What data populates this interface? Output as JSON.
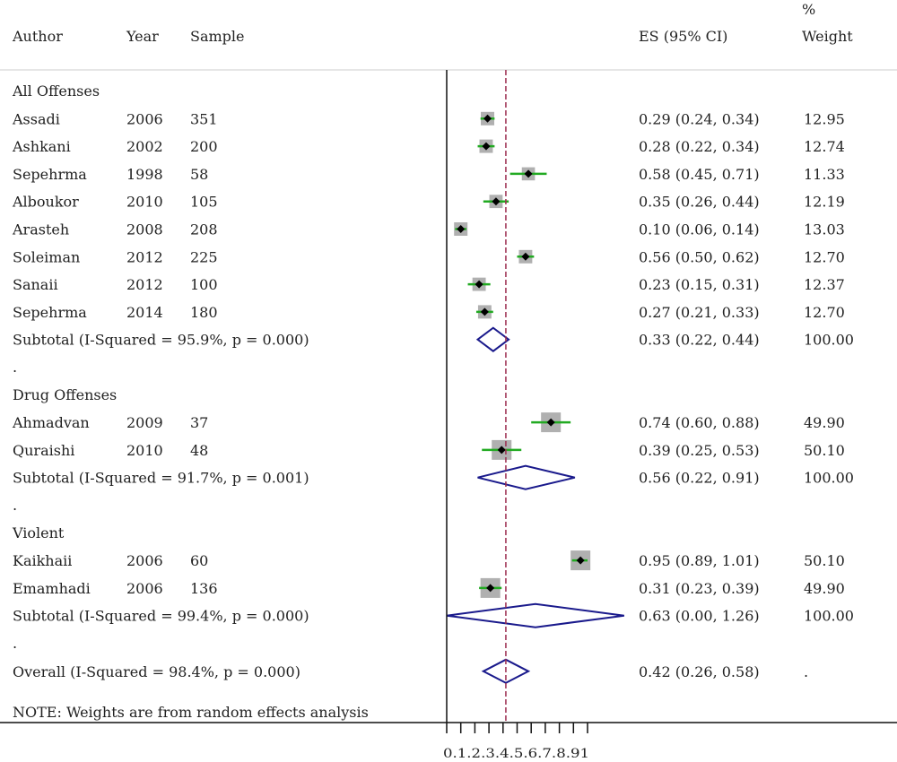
{
  "chart_data": {
    "type": "forest",
    "headers": {
      "author": "Author",
      "year": "Year",
      "sample": "Sample",
      "es": "ES (95% CI)",
      "weight_top": "%",
      "weight": "Weight"
    },
    "reference_line": 0.42,
    "x_axis": {
      "range": [
        0,
        1
      ],
      "ticks": [
        0,
        0.1,
        0.2,
        0.3,
        0.4,
        0.5,
        0.6,
        0.7,
        0.8,
        0.9,
        1
      ],
      "tick_label_text": "0.1.2.3.4.5.6.7.8.91"
    },
    "groups": [
      {
        "name": "All Offenses",
        "studies": [
          {
            "author": "Assadi",
            "year": "2006",
            "sample": "351",
            "es": 0.29,
            "lo": 0.24,
            "hi": 0.34,
            "es_text": "0.29 (0.24, 0.34)",
            "weight": "12.95"
          },
          {
            "author": "Ashkani",
            "year": "2002",
            "sample": "200",
            "es": 0.28,
            "lo": 0.22,
            "hi": 0.34,
            "es_text": "0.28 (0.22, 0.34)",
            "weight": "12.74"
          },
          {
            "author": "Sepehrma",
            "year": "1998",
            "sample": "58",
            "es": 0.58,
            "lo": 0.45,
            "hi": 0.71,
            "es_text": "0.58 (0.45, 0.71)",
            "weight": "11.33"
          },
          {
            "author": "Alboukor",
            "year": "2010",
            "sample": "105",
            "es": 0.35,
            "lo": 0.26,
            "hi": 0.44,
            "es_text": "0.35 (0.26, 0.44)",
            "weight": "12.19"
          },
          {
            "author": "Arasteh",
            "year": "2008",
            "sample": "208",
            "es": 0.1,
            "lo": 0.06,
            "hi": 0.14,
            "es_text": "0.10 (0.06, 0.14)",
            "weight": "13.03"
          },
          {
            "author": "Soleiman",
            "year": "2012",
            "sample": "225",
            "es": 0.56,
            "lo": 0.5,
            "hi": 0.62,
            "es_text": "0.56 (0.50, 0.62)",
            "weight": "12.70"
          },
          {
            "author": "Sanaii",
            "year": "2012",
            "sample": "100",
            "es": 0.23,
            "lo": 0.15,
            "hi": 0.31,
            "es_text": "0.23 (0.15, 0.31)",
            "weight": "12.37"
          },
          {
            "author": "Sepehrma",
            "year": "2014",
            "sample": "180",
            "es": 0.27,
            "lo": 0.21,
            "hi": 0.33,
            "es_text": "0.27 (0.21, 0.33)",
            "weight": "12.70"
          }
        ],
        "subtotal": {
          "label": "Subtotal  (I-Squared = 95.9%, p = 0.000)",
          "es": 0.33,
          "lo": 0.22,
          "hi": 0.44,
          "es_text": "0.33 (0.22, 0.44)",
          "weight": "100.00"
        }
      },
      {
        "name": "Drug Offenses",
        "studies": [
          {
            "author": "Ahmadvan",
            "year": "2009",
            "sample": "37",
            "es": 0.74,
            "lo": 0.6,
            "hi": 0.88,
            "es_text": "0.74 (0.60, 0.88)",
            "weight": "49.90"
          },
          {
            "author": "Quraishi",
            "year": "2010",
            "sample": "48",
            "es": 0.39,
            "lo": 0.25,
            "hi": 0.53,
            "es_text": "0.39 (0.25, 0.53)",
            "weight": "50.10"
          }
        ],
        "subtotal": {
          "label": "Subtotal  (I-Squared = 91.7%, p = 0.001)",
          "es": 0.56,
          "lo": 0.22,
          "hi": 0.91,
          "es_text": "0.56 (0.22, 0.91)",
          "weight": "100.00"
        }
      },
      {
        "name": "Violent",
        "studies": [
          {
            "author": "Kaikhaii",
            "year": "2006",
            "sample": "60",
            "es": 0.95,
            "lo": 0.89,
            "hi": 1.01,
            "es_text": "0.95 (0.89, 1.01)",
            "weight": "50.10"
          },
          {
            "author": "Emamhadi",
            "year": "2006",
            "sample": "136",
            "es": 0.31,
            "lo": 0.23,
            "hi": 0.39,
            "es_text": "0.31 (0.23, 0.39)",
            "weight": "49.90"
          }
        ],
        "subtotal": {
          "label": "Subtotal  (I-Squared = 99.4%, p = 0.000)",
          "es": 0.63,
          "lo": 0.0,
          "hi": 1.26,
          "es_text": "0.63 (0.00, 1.26)",
          "weight": "100.00"
        }
      }
    ],
    "group_separator": ".",
    "overall": {
      "label": "Overall  (I-Squared = 98.4%, p = 0.000)",
      "es": 0.42,
      "lo": 0.26,
      "hi": 0.58,
      "es_text": "0.42 (0.26, 0.58)",
      "weight": "."
    },
    "note": "NOTE: Weights are from random effects analysis",
    "colors": {
      "ci_line": "#22aa22",
      "point": "#000000",
      "weight_box": "#b0b0b0",
      "diamond": "#1a1a8c",
      "reference_line": "#9b2d4f",
      "axis": "#111111",
      "divider": "#cccccc"
    }
  }
}
